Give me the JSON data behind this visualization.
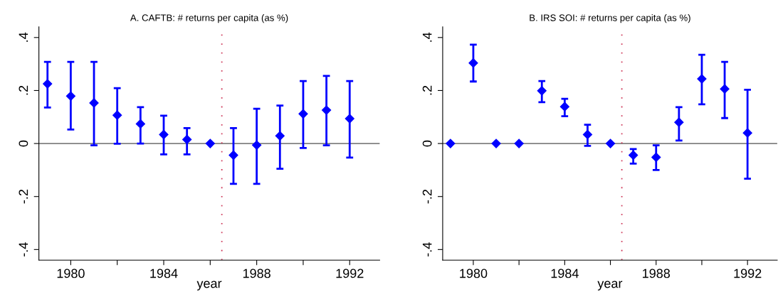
{
  "chart_data": [
    {
      "type": "scatter",
      "title": "A. CAFTB: # returns per capita (as %)",
      "xlabel": "year",
      "xlim": [
        1978.63,
        1993.29
      ],
      "ylim": [
        -0.44,
        0.44
      ],
      "xticks": [
        1980,
        {
          "value": 1982,
          "label": null
        },
        1984,
        {
          "value": 1986,
          "label": null
        },
        1988,
        {
          "value": 1990,
          "label": null
        },
        1992
      ],
      "yticks": [
        {
          "value": -0.4,
          "label": "-.4"
        },
        {
          "value": -0.2,
          "label": "-.2"
        },
        0,
        {
          "value": 0.2,
          "label": ".2"
        },
        {
          "value": 0.4,
          "label": ".4"
        }
      ],
      "marker": "diamond",
      "grid": false,
      "ref_lines": [
        {
          "axis": "y",
          "value": 0,
          "color": "#808080",
          "line_style": "solid"
        },
        {
          "axis": "x",
          "value": 1986.5,
          "color": "#d04060",
          "line_style": "dotted"
        }
      ],
      "series": [
        {
          "color": "#0000ff",
          "x": [
            1979,
            1980,
            1981,
            1982,
            1983,
            1984,
            1985,
            1986,
            1987,
            1988,
            1989,
            1990,
            1991,
            1992
          ],
          "values": [
            0.225,
            0.179,
            0.153,
            0.107,
            0.074,
            0.034,
            0.015,
            0.0,
            -0.044,
            -0.006,
            0.029,
            0.112,
            0.126,
            0.094
          ],
          "errors": [
            [
              0.136,
              0.308
            ],
            [
              0.053,
              0.308
            ],
            [
              -0.007,
              0.308
            ],
            [
              -0.001,
              0.209
            ],
            [
              0.0,
              0.137
            ],
            [
              -0.041,
              0.105
            ],
            [
              -0.041,
              0.058
            ],
            null,
            [
              -0.152,
              0.058
            ],
            [
              -0.152,
              0.131
            ],
            [
              -0.095,
              0.143
            ],
            [
              -0.017,
              0.236
            ],
            [
              -0.007,
              0.255
            ],
            [
              -0.053,
              0.236
            ]
          ]
        }
      ]
    },
    {
      "type": "scatter",
      "title": "B. IRS SOI: # returns per capita (as %)",
      "xlabel": "year",
      "xlim": [
        1978.66,
        1993.3
      ],
      "ylim": [
        -0.44,
        0.44
      ],
      "xticks": [
        1980,
        {
          "value": 1982,
          "label": null
        },
        1984,
        {
          "value": 1986,
          "label": null
        },
        1988,
        {
          "value": 1990,
          "label": null
        },
        1992
      ],
      "yticks": [
        {
          "value": -0.4,
          "label": "-.4"
        },
        {
          "value": -0.2,
          "label": "-.2"
        },
        0,
        {
          "value": 0.2,
          "label": ".2"
        },
        {
          "value": 0.4,
          "label": ".4"
        }
      ],
      "marker": "diamond",
      "grid": false,
      "ref_lines": [
        {
          "axis": "y",
          "value": 0,
          "color": "#808080",
          "line_style": "solid"
        },
        {
          "axis": "x",
          "value": 1986.5,
          "color": "#d04060",
          "line_style": "dotted"
        }
      ],
      "series": [
        {
          "color": "#0000ff",
          "x": [
            1980,
            1983,
            1984,
            1985,
            1986,
            1987,
            1988,
            1989,
            1990,
            1991,
            1992
          ],
          "values": [
            0.304,
            0.199,
            0.139,
            0.034,
            0.0,
            -0.044,
            -0.052,
            0.08,
            0.244,
            0.206,
            0.04
          ],
          "errors": [
            [
              0.234,
              0.373
            ],
            [
              0.156,
              0.236
            ],
            [
              0.103,
              0.169
            ],
            [
              -0.009,
              0.071
            ],
            null,
            [
              -0.076,
              -0.021
            ],
            [
              -0.1,
              -0.007
            ],
            [
              0.011,
              0.137
            ],
            [
              0.148,
              0.335
            ],
            [
              0.096,
              0.308
            ],
            [
              -0.133,
              0.203
            ]
          ]
        },
        {
          "color": "#0000ff",
          "x": [
            1979,
            1981,
            1982
          ],
          "values": [
            0,
            0,
            0
          ],
          "errors": [
            [
              0,
              0
            ],
            [
              0,
              0
            ],
            [
              0,
              0
            ]
          ]
        }
      ]
    }
  ]
}
